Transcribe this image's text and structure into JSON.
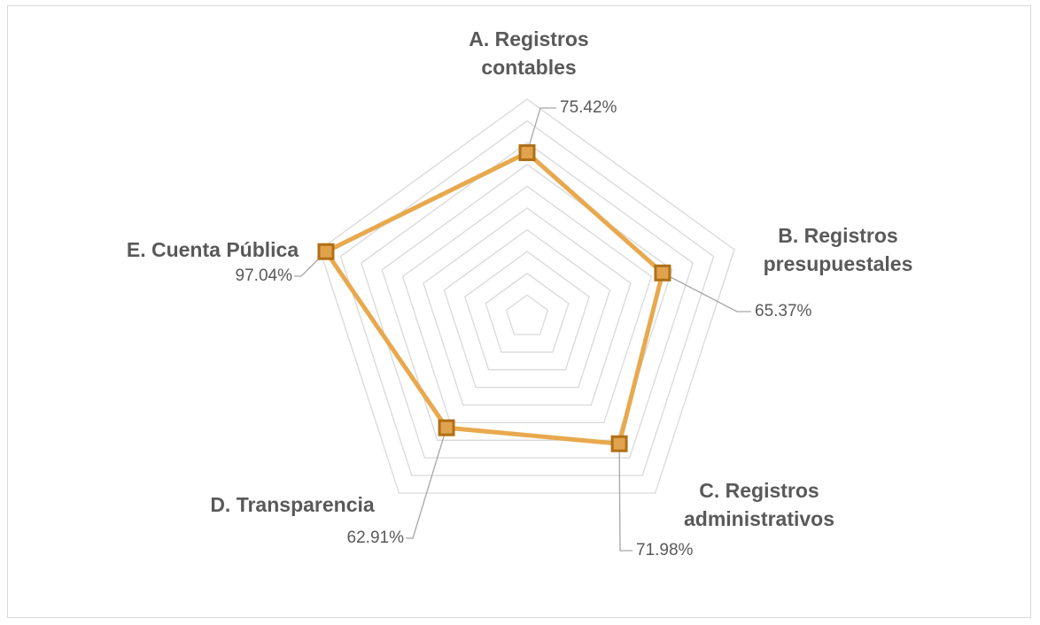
{
  "chart_data": {
    "type": "radar",
    "categories": [
      "A. Registros contables",
      "B. Registros presupuestales",
      "C. Registros administrativos",
      "D. Transparencia",
      "E. Cuenta Pública"
    ],
    "values": [
      75.42,
      65.37,
      71.98,
      62.91,
      97.04
    ],
    "value_labels": [
      "75.42%",
      "65.37%",
      "71.98%",
      "62.91%",
      "97.04%"
    ],
    "color": "#e8a94e",
    "ylim": [
      0,
      100
    ],
    "yticks": [
      0,
      10,
      20,
      30,
      40,
      50,
      60,
      70,
      80,
      90,
      100
    ],
    "grid": true
  }
}
